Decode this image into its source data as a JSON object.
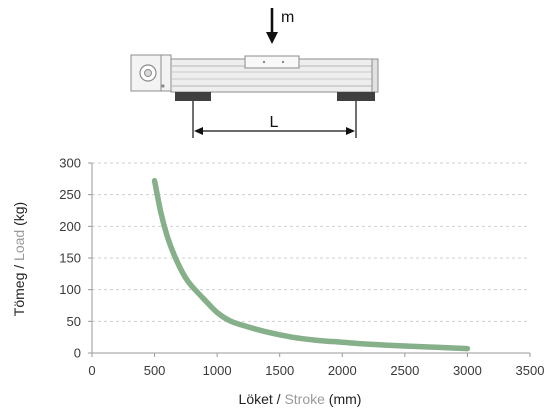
{
  "diagram": {
    "mass_label": "m",
    "span_label": "L"
  },
  "chart_data": {
    "type": "line",
    "xlabel_primary": "Löket",
    "xlabel_sep": " / ",
    "xlabel_secondary": "Stroke",
    "xlabel_unit": " (mm)",
    "ylabel_primary": "Tömeg",
    "ylabel_sep": " / ",
    "ylabel_secondary": "Load",
    "ylabel_unit": " (kg)",
    "xlim": [
      0,
      3500
    ],
    "ylim": [
      0,
      300
    ],
    "xticks": [
      0,
      500,
      1000,
      1500,
      2000,
      2500,
      3000,
      3500
    ],
    "yticks": [
      0,
      50,
      100,
      150,
      200,
      250,
      300
    ],
    "grid": "horizontal-dashed",
    "series": [
      {
        "color": "#86b08a",
        "x": [
          500,
          550,
          600,
          650,
          700,
          750,
          800,
          900,
          1000,
          1100,
          1200,
          1400,
          1600,
          1800,
          2000,
          2200,
          2500,
          2750,
          3000
        ],
        "y": [
          272,
          222,
          185,
          158,
          136,
          118,
          105,
          84,
          64,
          51,
          44,
          33,
          25,
          20,
          17,
          14,
          11,
          9,
          7
        ]
      }
    ]
  }
}
